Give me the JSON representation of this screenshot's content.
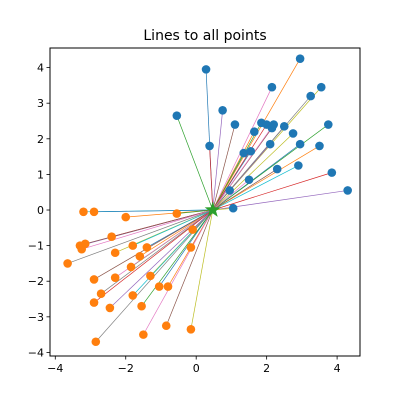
{
  "chart_data": {
    "type": "scatter",
    "title": "Lines to all points",
    "xlabel": "",
    "ylabel": "",
    "xlim": [
      -4.15,
      4.65
    ],
    "ylim": [
      -4.1,
      4.55
    ],
    "xticks": [
      -4,
      -2,
      0,
      2,
      4
    ],
    "yticks": [
      -4,
      -3,
      -2,
      -1,
      0,
      1,
      2,
      3,
      4
    ],
    "grid": false,
    "legend": "none",
    "center": {
      "x": 0.47,
      "y": 0.0,
      "marker": "star",
      "color": "#2ca02c"
    },
    "line_colors": [
      "#1f77b4",
      "#ff7f0e",
      "#2ca02c",
      "#d62728",
      "#9467bd",
      "#8c564b",
      "#e377c2",
      "#7f7f7f",
      "#bcbd22",
      "#17becf"
    ],
    "series": [
      {
        "color": "#1f77b4",
        "points": [
          [
            0.28,
            3.95
          ],
          [
            2.95,
            4.25
          ],
          [
            -0.55,
            2.65
          ],
          [
            0.38,
            1.8
          ],
          [
            0.75,
            2.8
          ],
          [
            1.1,
            2.4
          ],
          [
            2.15,
            3.45
          ],
          [
            3.25,
            3.2
          ],
          [
            3.55,
            3.45
          ],
          [
            1.35,
            1.6
          ],
          [
            1.55,
            1.65
          ],
          [
            1.65,
            2.2
          ],
          [
            1.85,
            2.45
          ],
          [
            2.0,
            2.4
          ],
          [
            2.1,
            1.85
          ],
          [
            2.15,
            2.3
          ],
          [
            2.2,
            2.4
          ],
          [
            2.5,
            2.35
          ],
          [
            2.75,
            2.15
          ],
          [
            2.9,
            1.25
          ],
          [
            2.95,
            1.85
          ],
          [
            3.5,
            1.8
          ],
          [
            3.75,
            2.4
          ],
          [
            3.85,
            1.05
          ],
          [
            4.3,
            0.55
          ],
          [
            2.3,
            1.15
          ],
          [
            1.5,
            0.85
          ],
          [
            0.95,
            0.55
          ],
          [
            1.05,
            0.05
          ]
        ]
      },
      {
        "color": "#ff7f0e",
        "points": [
          [
            -3.2,
            -0.05
          ],
          [
            -2.9,
            -0.05
          ],
          [
            -2.0,
            -0.2
          ],
          [
            -0.55,
            -0.1
          ],
          [
            -2.4,
            -0.75
          ],
          [
            -3.3,
            -1.0
          ],
          [
            -3.15,
            -0.95
          ],
          [
            -3.25,
            -1.1
          ],
          [
            -3.65,
            -1.5
          ],
          [
            -2.3,
            -1.2
          ],
          [
            -1.8,
            -1.0
          ],
          [
            -1.4,
            -1.05
          ],
          [
            -1.6,
            -1.3
          ],
          [
            -1.85,
            -1.6
          ],
          [
            -0.1,
            -0.55
          ],
          [
            -0.15,
            -1.05
          ],
          [
            -2.9,
            -1.95
          ],
          [
            -2.3,
            -1.9
          ],
          [
            -2.7,
            -2.35
          ],
          [
            -1.3,
            -1.85
          ],
          [
            -1.8,
            -2.4
          ],
          [
            -1.05,
            -2.15
          ],
          [
            -0.8,
            -2.15
          ],
          [
            -1.55,
            -2.7
          ],
          [
            -2.9,
            -2.6
          ],
          [
            -2.45,
            -2.75
          ],
          [
            -0.85,
            -3.25
          ],
          [
            -1.5,
            -3.5
          ],
          [
            -2.85,
            -3.7
          ],
          [
            -0.15,
            -3.35
          ]
        ]
      }
    ]
  }
}
